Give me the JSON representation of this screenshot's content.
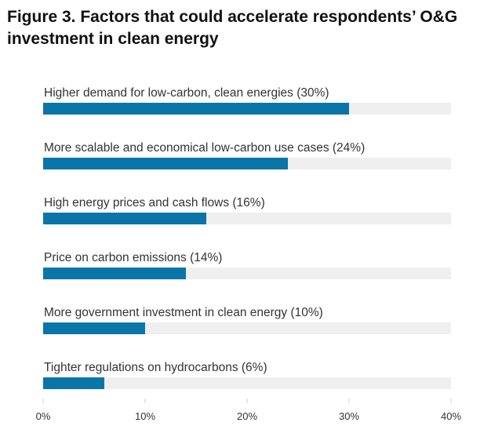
{
  "chart_data": {
    "type": "hbar",
    "title": "Figure 3. Factors that could accelerate respondents’ O&G investment in clean energy",
    "categories": [
      "Higher demand for low-carbon, clean energies",
      "More scalable and economical low-carbon use cases",
      "High energy prices and cash flows",
      "Price on carbon emissions",
      "More government investment in clean energy",
      "Tighter regulations on hydrocarbons"
    ],
    "values": [
      30,
      24,
      16,
      14,
      10,
      6
    ],
    "value_labels": [
      "(30%)",
      "(24%)",
      "(16%)",
      "(14%)",
      "(10%)",
      "(6%)"
    ],
    "color": "#0a75a8",
    "xlim": [
      0,
      40
    ],
    "xticks": [
      {
        "value": 0,
        "label": "0%"
      },
      {
        "value": 10,
        "label": "10%"
      },
      {
        "value": 20,
        "label": "20%"
      },
      {
        "value": 30,
        "label": "30%"
      },
      {
        "value": 40,
        "label": "40%"
      }
    ],
    "grid": false
  }
}
